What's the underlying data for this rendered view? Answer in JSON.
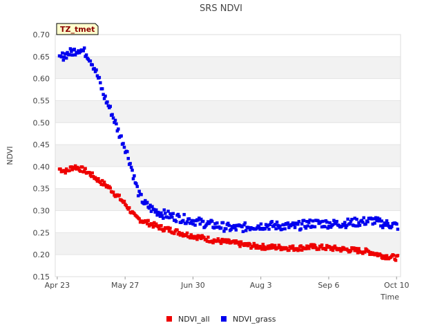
{
  "chart_data": {
    "type": "scatter",
    "title": "SRS NDVI",
    "xlabel": "Time",
    "ylabel": "NDVI",
    "badge": "TZ_tmet",
    "ylim": [
      0.15,
      0.7
    ],
    "yticks": [
      "0.70",
      "0.65",
      "0.60",
      "0.55",
      "0.50",
      "0.45",
      "0.40",
      "0.35",
      "0.30",
      "0.25",
      "0.20",
      "0.15"
    ],
    "yticks_values": [
      0.7,
      0.65,
      0.6,
      0.55,
      0.5,
      0.45,
      0.4,
      0.35,
      0.3,
      0.25,
      0.2,
      0.15
    ],
    "xticks": [
      "Apr 23",
      "May 27",
      "Jun 30",
      "Aug 3",
      "Sep 6",
      "Oct 10"
    ],
    "xlim": [
      "2023-04-22",
      "2023-10-12"
    ],
    "xticks_dates": [
      "2023-04-23",
      "2023-05-27",
      "2023-06-30",
      "2023-08-03",
      "2023-09-06",
      "2023-10-10"
    ],
    "grid": "horizontal alternating bands",
    "legend_position": "bottom-center",
    "series": [
      {
        "name": "NDVI_all",
        "color": "#ee0000",
        "points": [
          [
            "2023-04-24",
            0.395
          ],
          [
            "2023-04-26",
            0.392
          ],
          [
            "2023-04-28",
            0.39
          ],
          [
            "2023-04-30",
            0.398
          ],
          [
            "2023-05-02",
            0.4
          ],
          [
            "2023-05-04",
            0.396
          ],
          [
            "2023-05-06",
            0.393
          ],
          [
            "2023-05-08",
            0.388
          ],
          [
            "2023-05-10",
            0.382
          ],
          [
            "2023-05-12",
            0.375
          ],
          [
            "2023-05-14",
            0.368
          ],
          [
            "2023-05-16",
            0.362
          ],
          [
            "2023-05-18",
            0.356
          ],
          [
            "2023-05-20",
            0.348
          ],
          [
            "2023-05-22",
            0.338
          ],
          [
            "2023-05-24",
            0.33
          ],
          [
            "2023-05-26",
            0.32
          ],
          [
            "2023-05-28",
            0.31
          ],
          [
            "2023-05-30",
            0.298
          ],
          [
            "2023-06-01",
            0.285
          ],
          [
            "2023-06-05",
            0.277
          ],
          [
            "2023-06-10",
            0.268
          ],
          [
            "2023-06-15",
            0.26
          ],
          [
            "2023-06-20",
            0.255
          ],
          [
            "2023-06-25",
            0.248
          ],
          [
            "2023-06-30",
            0.243
          ],
          [
            "2023-07-05",
            0.238
          ],
          [
            "2023-07-10",
            0.233
          ],
          [
            "2023-07-15",
            0.23
          ],
          [
            "2023-07-20",
            0.227
          ],
          [
            "2023-07-25",
            0.223
          ],
          [
            "2023-07-30",
            0.22
          ],
          [
            "2023-08-05",
            0.218
          ],
          [
            "2023-08-12",
            0.217
          ],
          [
            "2023-08-20",
            0.215
          ],
          [
            "2023-08-28",
            0.218
          ],
          [
            "2023-09-05",
            0.216
          ],
          [
            "2023-09-12",
            0.213
          ],
          [
            "2023-09-20",
            0.21
          ],
          [
            "2023-09-26",
            0.207
          ],
          [
            "2023-09-30",
            0.202
          ],
          [
            "2023-10-03",
            0.198
          ],
          [
            "2023-10-06",
            0.196
          ],
          [
            "2023-10-09",
            0.194
          ],
          [
            "2023-10-11",
            0.192
          ]
        ]
      },
      {
        "name": "NDVI_grass",
        "color": "#0000ee",
        "points": [
          [
            "2023-04-24",
            0.645
          ],
          [
            "2023-04-26",
            0.652
          ],
          [
            "2023-04-28",
            0.657
          ],
          [
            "2023-04-30",
            0.66
          ],
          [
            "2023-05-02",
            0.664
          ],
          [
            "2023-05-04",
            0.668
          ],
          [
            "2023-05-06",
            0.663
          ],
          [
            "2023-05-08",
            0.655
          ],
          [
            "2023-05-10",
            0.64
          ],
          [
            "2023-05-12",
            0.62
          ],
          [
            "2023-05-14",
            0.595
          ],
          [
            "2023-05-16",
            0.565
          ],
          [
            "2023-05-18",
            0.545
          ],
          [
            "2023-05-20",
            0.525
          ],
          [
            "2023-05-22",
            0.5
          ],
          [
            "2023-05-24",
            0.475
          ],
          [
            "2023-05-26",
            0.455
          ],
          [
            "2023-05-28",
            0.43
          ],
          [
            "2023-05-30",
            0.4
          ],
          [
            "2023-06-01",
            0.365
          ],
          [
            "2023-06-03",
            0.335
          ],
          [
            "2023-06-06",
            0.315
          ],
          [
            "2023-06-10",
            0.302
          ],
          [
            "2023-06-15",
            0.293
          ],
          [
            "2023-06-20",
            0.287
          ],
          [
            "2023-06-25",
            0.282
          ],
          [
            "2023-06-30",
            0.278
          ],
          [
            "2023-07-05",
            0.272
          ],
          [
            "2023-07-10",
            0.268
          ],
          [
            "2023-07-15",
            0.264
          ],
          [
            "2023-07-20",
            0.26
          ],
          [
            "2023-07-25",
            0.262
          ],
          [
            "2023-07-30",
            0.265
          ],
          [
            "2023-08-05",
            0.267
          ],
          [
            "2023-08-12",
            0.266
          ],
          [
            "2023-08-20",
            0.264
          ],
          [
            "2023-08-26",
            0.27
          ],
          [
            "2023-09-01",
            0.272
          ],
          [
            "2023-09-08",
            0.27
          ],
          [
            "2023-09-15",
            0.272
          ],
          [
            "2023-09-22",
            0.275
          ],
          [
            "2023-09-28",
            0.278
          ],
          [
            "2023-10-02",
            0.272
          ],
          [
            "2023-10-05",
            0.27
          ],
          [
            "2023-10-08",
            0.268
          ],
          [
            "2023-10-11",
            0.265
          ]
        ]
      }
    ]
  }
}
